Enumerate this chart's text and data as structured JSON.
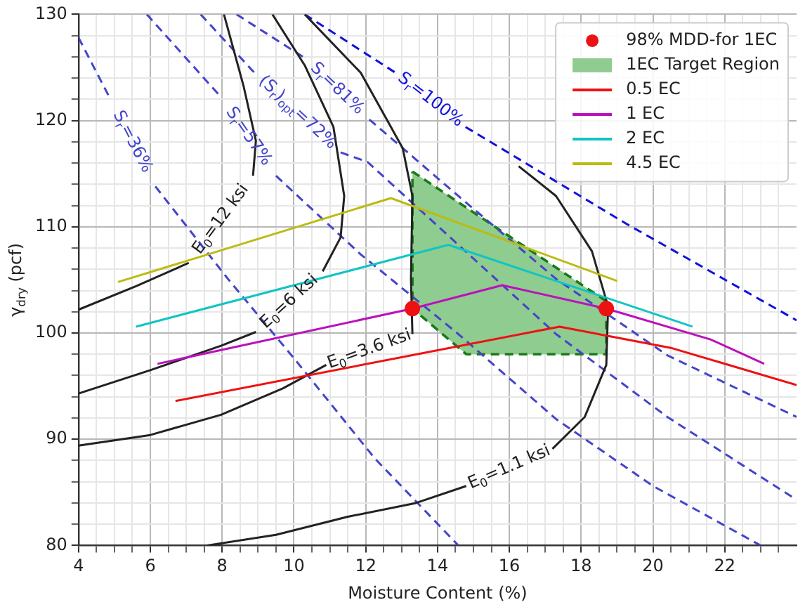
{
  "chart_data": {
    "type": "line",
    "xlabel": "Moisture Content (%)",
    "ylabel": "γ$_{dry}$ (pcf)",
    "xlim": [
      4,
      24
    ],
    "ylim": [
      80,
      130
    ],
    "xticks": [
      4,
      {
        "value": 4.5,
        "label": null
      },
      {
        "value": 5,
        "label": null
      },
      {
        "value": 5.5,
        "label": null
      },
      6,
      {
        "value": 6.5,
        "label": null
      },
      {
        "value": 7,
        "label": null
      },
      {
        "value": 7.5,
        "label": null
      },
      8,
      {
        "value": 8.5,
        "label": null
      },
      {
        "value": 9,
        "label": null
      },
      {
        "value": 9.5,
        "label": null
      },
      10,
      {
        "value": 10.5,
        "label": null
      },
      {
        "value": 11,
        "label": null
      },
      {
        "value": 11.5,
        "label": null
      },
      12,
      {
        "value": 12.5,
        "label": null
      },
      {
        "value": 13,
        "label": null
      },
      {
        "value": 13.5,
        "label": null
      },
      14,
      {
        "value": 14.5,
        "label": null
      },
      {
        "value": 15,
        "label": null
      },
      {
        "value": 15.5,
        "label": null
      },
      16,
      {
        "value": 16.5,
        "label": null
      },
      {
        "value": 17,
        "label": null
      },
      {
        "value": 17.5,
        "label": null
      },
      18,
      {
        "value": 18.5,
        "label": null
      },
      {
        "value": 19,
        "label": null
      },
      {
        "value": 19.5,
        "label": null
      },
      20,
      {
        "value": 20.5,
        "label": null
      },
      {
        "value": 21,
        "label": null
      },
      {
        "value": 21.5,
        "label": null
      },
      22,
      {
        "value": 22.5,
        "label": null
      },
      {
        "value": 23,
        "label": null
      },
      {
        "value": 23.5,
        "label": null
      }
    ],
    "yticks": [
      80,
      {
        "value": 82,
        "label": null
      },
      {
        "value": 84,
        "label": null
      },
      {
        "value": 86,
        "label": null
      },
      {
        "value": 88,
        "label": null
      },
      90,
      {
        "value": 92,
        "label": null
      },
      {
        "value": 94,
        "label": null
      },
      {
        "value": 96,
        "label": null
      },
      {
        "value": 98,
        "label": null
      },
      100,
      {
        "value": 102,
        "label": null
      },
      {
        "value": 104,
        "label": null
      },
      {
        "value": 106,
        "label": null
      },
      {
        "value": 108,
        "label": null
      },
      110,
      {
        "value": 112,
        "label": null
      },
      {
        "value": 114,
        "label": null
      },
      {
        "value": 116,
        "label": null
      },
      {
        "value": 118,
        "label": null
      },
      120,
      {
        "value": 122,
        "label": null
      },
      {
        "value": 124,
        "label": null
      },
      {
        "value": 126,
        "label": null
      },
      {
        "value": 128,
        "label": null
      },
      130
    ],
    "grid": true,
    "legend": "top right",
    "series": [
      {
        "name": "98% MDD-for 1EC",
        "type": "scatter",
        "marker": "circle",
        "color": "#ee1111",
        "x": [
          13.3,
          18.7
        ],
        "values": [
          102.3,
          102.3
        ]
      },
      {
        "name": "1EC Target Region",
        "type": "area",
        "color": "#8fcc8f",
        "x": [
          13.3,
          18.7,
          18.7,
          14.8,
          13.3,
          13.3
        ],
        "values": [
          115.2,
          103,
          98,
          98,
          102.3,
          115.2
        ]
      },
      {
        "name": "0.5 EC",
        "color": "#ee1111",
        "x": [
          6.7,
          17.4,
          20.5,
          24
        ],
        "values": [
          93.6,
          100.6,
          98.6,
          95.1
        ]
      },
      {
        "name": "1 EC",
        "color": "#bb11bb",
        "x": [
          6.2,
          13.3,
          15.8,
          18.7,
          21.6,
          23.1
        ],
        "values": [
          97.1,
          102.3,
          104.5,
          102.3,
          99.4,
          97.1
        ]
      },
      {
        "name": "2 EC",
        "color": "#11c4c4",
        "x": [
          5.6,
          14.3,
          21.1
        ],
        "values": [
          100.6,
          108.3,
          100.6
        ]
      },
      {
        "name": "4.5 EC",
        "color": "#bbbb11",
        "x": [
          5.1,
          12.7,
          19
        ],
        "values": [
          104.8,
          112.7,
          104.9
        ]
      },
      {
        "name": "E$_{0}$=12 ksi",
        "color": "#222222",
        "x": [
          4,
          5.6,
          7.07,
          8,
          8.86,
          8.94,
          8.6,
          8.05
        ],
        "values": [
          102.2,
          104.4,
          106.6,
          null,
          114.8,
          118.1,
          123.2,
          130
        ]
      },
      {
        "name": "E$_{0}$=6 ksi",
        "color": "#222222",
        "x": [
          4,
          6,
          7.97,
          8.94,
          10,
          10.8,
          11.3,
          11.4,
          11.1,
          10.3,
          9.4
        ],
        "values": [
          94.3,
          96.5,
          98.8,
          100.1,
          null,
          105.8,
          109,
          112.9,
          119.4,
          125.2,
          130
        ]
      },
      {
        "name": "E$_{0}$=3.6 ksi",
        "color": "#222222",
        "x": [
          4,
          6,
          7.97,
          9.7,
          10.9,
          12,
          13.3,
          13.26,
          13.3,
          13.03,
          11.86,
          10.3
        ],
        "values": [
          89.4,
          90.4,
          92.3,
          94.8,
          97,
          null,
          99.9,
          105.1,
          112.9,
          117.4,
          124.5,
          130
        ]
      },
      {
        "name": "E$_{0}$=1.1 ksi",
        "color": "#222222",
        "x": [
          7.58,
          9.5,
          11.5,
          13.4,
          14.8,
          16,
          17.2,
          18.1,
          18.7,
          18.75,
          18.3,
          17.3,
          16.26
        ],
        "values": [
          80,
          81,
          82.7,
          84,
          85.6,
          null,
          89.1,
          92.1,
          97,
          102.5,
          107.7,
          112.9,
          115.7
        ]
      },
      {
        "name": "S$_{r}$=36%",
        "line_style": "dashed",
        "color": "#4444cc",
        "x": [
          4,
          4.86,
          5.5,
          6.14,
          8.16,
          10.03,
          12.25,
          14.58
        ],
        "values": [
          127.8,
          122.2,
          null,
          113.8,
          105.1,
          97.5,
          88.2,
          80
        ]
      },
      {
        "name": "S$_{r}$=57%",
        "line_style": "dashed",
        "color": "#4444cc",
        "x": [
          5.9,
          7.97,
          8.7,
          9.5,
          11.86,
          14.58,
          17.3,
          20,
          23
        ],
        "values": [
          130,
          122.2,
          null,
          114.8,
          107.4,
          99.9,
          91.9,
          85.6,
          80
        ]
      },
      {
        "name": "(S$_{r}$)$_{opt}$=72%",
        "line_style": "dashed",
        "color": "#4444cc",
        "x": [
          7.4,
          8.9,
          10.1,
          11.3,
          12.05,
          14.58,
          17.3,
          20.4,
          24
        ],
        "values": [
          130,
          124.5,
          null,
          117,
          116.1,
          108.3,
          99.9,
          92.1,
          84.3
        ]
      },
      {
        "name": "S$_{r}$=81%",
        "line_style": "dashed",
        "color": "#4444cc",
        "x": [
          8.4,
          10.3,
          11.2,
          12.1,
          14.58,
          17.3,
          20.4,
          24
        ],
        "values": [
          130,
          125.9,
          null,
          120.1,
          112.9,
          105.1,
          97.9,
          92.1
        ]
      },
      {
        "name": "S$_{r}$=100%",
        "line_style": "dashed",
        "color": "#1111dd",
        "x": [
          10.3,
          12.83,
          13.8,
          14.78,
          19.25,
          24
        ],
        "values": [
          130,
          124.5,
          null,
          119.4,
          110.3,
          101.2
        ]
      }
    ]
  }
}
